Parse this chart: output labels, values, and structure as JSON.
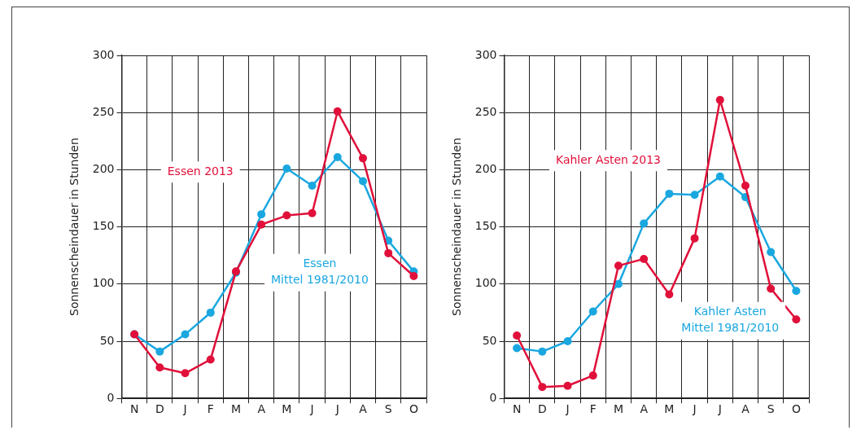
{
  "chart_data": [
    {
      "type": "line",
      "ylabel": "Sonnenscheindauer in Stunden",
      "categories": [
        "N",
        "D",
        "J",
        "F",
        "M",
        "A",
        "M",
        "J",
        "J",
        "A",
        "S",
        "O"
      ],
      "ylim": [
        0,
        300
      ],
      "yticks": [
        0,
        50,
        100,
        150,
        200,
        250,
        300
      ],
      "grid": true,
      "legend": false,
      "marker": "circle",
      "line_style": "solid",
      "series": [
        {
          "name": "Essen\nMittel 1981/2010",
          "color": "#1aa7e0",
          "values": [
            56,
            41,
            56,
            75,
            110,
            161,
            201,
            186,
            211,
            190,
            138,
            111
          ]
        },
        {
          "name": "Essen 2013",
          "color": "#e0103a",
          "values": [
            56,
            27,
            22,
            34,
            111,
            152,
            160,
            162,
            251,
            210,
            127,
            107
          ]
        }
      ]
    },
    {
      "type": "line",
      "ylabel": "Sonnenscheindauer in Stunden",
      "categories": [
        "N",
        "D",
        "J",
        "F",
        "M",
        "A",
        "M",
        "J",
        "J",
        "A",
        "S",
        "O"
      ],
      "ylim": [
        0,
        300
      ],
      "yticks": [
        0,
        50,
        100,
        150,
        200,
        250,
        300
      ],
      "grid": true,
      "legend": false,
      "marker": "circle",
      "line_style": "solid",
      "series": [
        {
          "name": "Kahler Asten\nMittel 1981/2010",
          "color": "#1aa7e0",
          "values": [
            44,
            41,
            50,
            76,
            100,
            153,
            179,
            178,
            194,
            176,
            128,
            94
          ]
        },
        {
          "name": "Kahler Asten 2013",
          "color": "#e0103a",
          "values": [
            55,
            10,
            11,
            20,
            116,
            122,
            91,
            140,
            261,
            186,
            96,
            69
          ]
        }
      ]
    }
  ]
}
